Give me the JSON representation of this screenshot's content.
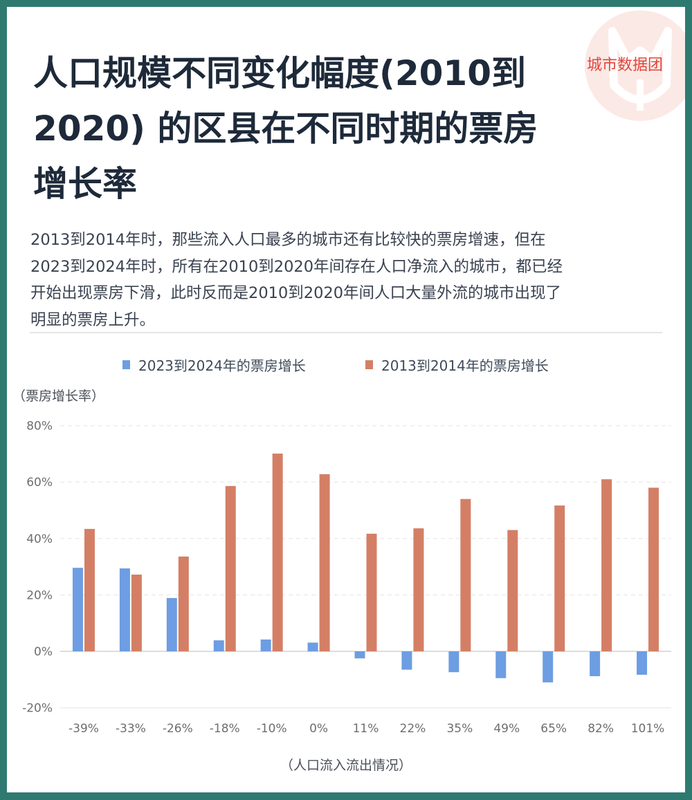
{
  "header": {
    "title_lines": [
      "人口规模不同变化幅度(2010到",
      "2020) 的区县在不同时期的票房",
      "增长率"
    ],
    "brand": "城市数据团"
  },
  "description": {
    "lines": [
      "2013到2014年时，那些流入人口最多的城市还有比较快的票房增速，但在",
      "2023到2024年时，所有在2010到2020年间存在人口净流入的城市，都已经",
      "开始出现票房下滑，此时反而是2010到2020年间人口大量外流的城市出现了",
      "明显的票房上升。"
    ]
  },
  "colors": {
    "frame": "#2f7a70",
    "series_2023": "#6d9de2",
    "series_2013": "#d47f65",
    "brand": "#e2453a",
    "title": "#1e2a3a"
  },
  "chart_data": {
    "type": "bar",
    "title": "人口规模不同变化幅度(2010到2020) 的区县在不同时期的票房增长率",
    "xlabel": "（人口流入流出情况）",
    "ylabel": "（票房增长率）",
    "ylim": [
      -20,
      80
    ],
    "yticks": [
      -20,
      0,
      20,
      40,
      60,
      80
    ],
    "ytick_labels": [
      "-20%",
      "0%",
      "20%",
      "40%",
      "60%",
      "80%"
    ],
    "grid": true,
    "legend_position": "top",
    "categories": [
      "-39%",
      "-33%",
      "-26%",
      "-18%",
      "-10%",
      "0%",
      "11%",
      "22%",
      "35%",
      "49%",
      "65%",
      "82%",
      "101%"
    ],
    "series": [
      {
        "name": "2023到2024年的票房增长",
        "color": "#6d9de2",
        "values": [
          29.6,
          29.4,
          18.9,
          3.9,
          4.2,
          3.1,
          -2.5,
          -6.5,
          -7.4,
          -9.5,
          -11.0,
          -8.8,
          -8.3
        ]
      },
      {
        "name": "2013到2014年的票房增长",
        "color": "#d47f65",
        "values": [
          43.4,
          27.2,
          33.6,
          58.6,
          70.1,
          62.8,
          41.7,
          43.6,
          54.0,
          43.0,
          51.7,
          61.0,
          58.0
        ]
      }
    ]
  }
}
